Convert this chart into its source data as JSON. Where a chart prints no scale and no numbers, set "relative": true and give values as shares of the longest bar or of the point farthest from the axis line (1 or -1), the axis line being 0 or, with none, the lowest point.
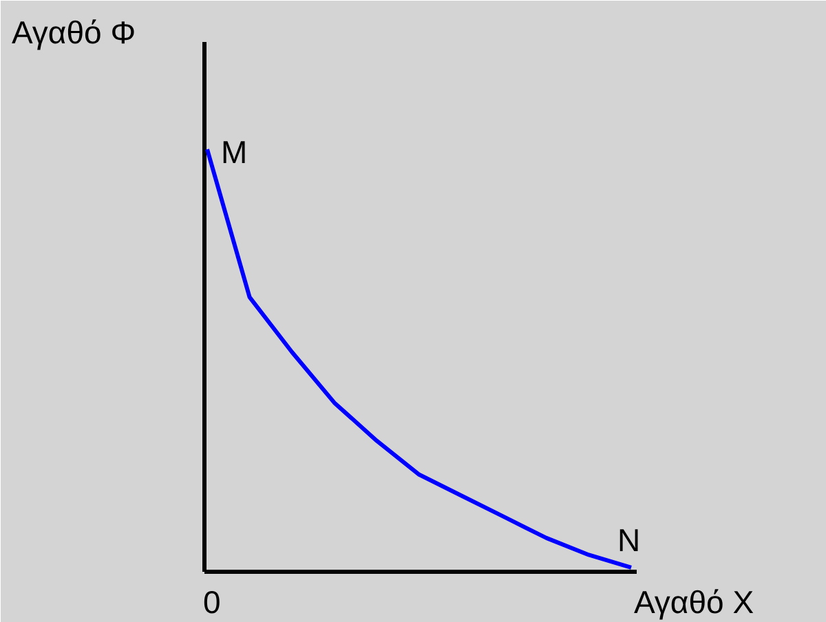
{
  "chart_data": {
    "type": "line",
    "relative": true,
    "xlabel": "Αγαθό Χ",
    "ylabel": "Αγαθό Φ",
    "categories": [
      null,
      null,
      null,
      null,
      null,
      null,
      null,
      null,
      null,
      null,
      null
    ],
    "series": [
      {
        "color": "#0000ff",
        "values": [
          1.0,
          0.65,
          0.52,
          0.4,
          0.31,
          0.23,
          0.18,
          0.13,
          0.08,
          0.04,
          0.01
        ]
      }
    ],
    "annotations": [
      "0",
      "M",
      "N"
    ]
  }
}
